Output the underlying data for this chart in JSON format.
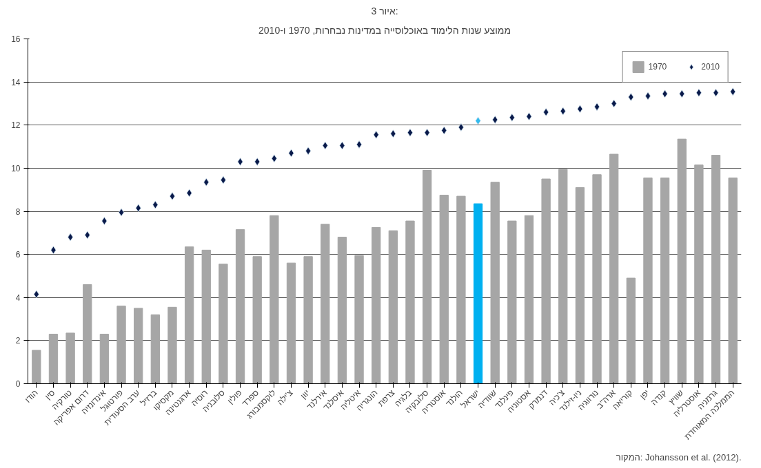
{
  "chart_data": {
    "type": "bar",
    "title": "איור 3:",
    "subtitle": "ממוצע שנות הלימוד באוכלוסייה במדינות נבחרות, 1970 ו-2010",
    "categories": [
      "הודו",
      "סין",
      "טורקיה",
      "דרום אפריקה",
      "אינדונזיה",
      "פורטוגל",
      "ערב הסעודית",
      "ברזיל",
      "מקסיקו",
      "ארגנטינה",
      "רוסיה",
      "סלובניה",
      "פולין",
      "ספרד",
      "לוקסמבורג",
      "צ'ילה",
      "יוון",
      "אירלנד",
      "איסלנד",
      "איטליה",
      "הונגריה",
      "צרפת",
      "בלגיה",
      "סלובקיה",
      "אוסטריה",
      "הולנד",
      "ישראל",
      "שוודיה",
      "פינלנד",
      "אסטוניה",
      "דנמרק",
      "צ'כיה",
      "ניו-זילנד",
      "נורווגיה",
      "ארה\"ב",
      "קוריאה",
      "יפן",
      "קנדה",
      "שוויץ",
      "אוסטרליה",
      "גרמניה",
      "הממלכה המאוחדת"
    ],
    "series": [
      {
        "name": "1970",
        "colors": [
          "#a6a6a6",
          "#a6a6a6",
          "#a6a6a6",
          "#a6a6a6",
          "#a6a6a6",
          "#a6a6a6",
          "#a6a6a6",
          "#a6a6a6",
          "#a6a6a6",
          "#a6a6a6",
          "#a6a6a6",
          "#a6a6a6",
          "#a6a6a6",
          "#a6a6a6",
          "#a6a6a6",
          "#a6a6a6",
          "#a6a6a6",
          "#a6a6a6",
          "#a6a6a6",
          "#a6a6a6",
          "#a6a6a6",
          "#a6a6a6",
          "#a6a6a6",
          "#a6a6a6",
          "#a6a6a6",
          "#a6a6a6",
          "#00b0f0",
          "#a6a6a6",
          "#a6a6a6",
          "#a6a6a6",
          "#a6a6a6",
          "#a6a6a6",
          "#a6a6a6",
          "#a6a6a6",
          "#a6a6a6",
          "#a6a6a6",
          "#a6a6a6",
          "#a6a6a6",
          "#a6a6a6",
          "#a6a6a6",
          "#a6a6a6",
          "#a6a6a6"
        ],
        "values": [
          1.55,
          2.3,
          2.35,
          4.6,
          2.3,
          3.6,
          3.5,
          3.2,
          3.55,
          6.35,
          6.2,
          5.55,
          7.15,
          5.9,
          7.8,
          5.6,
          5.9,
          7.4,
          6.8,
          5.95,
          7.25,
          7.1,
          7.55,
          9.9,
          8.75,
          8.7,
          8.35,
          9.35,
          7.55,
          7.8,
          9.5,
          9.95,
          9.1,
          9.7,
          10.65,
          4.9,
          9.55,
          9.55,
          11.35,
          10.15,
          10.6,
          9.55
        ]
      },
      {
        "name": "2010",
        "type": "scatter",
        "marker": "diamond",
        "colors": [
          "#0a1a4a",
          "#0a1a4a",
          "#0a1a4a",
          "#0a1a4a",
          "#0a1a4a",
          "#0a1a4a",
          "#0a1a4a",
          "#0a1a4a",
          "#0a1a4a",
          "#0a1a4a",
          "#0a1a4a",
          "#0a1a4a",
          "#0a1a4a",
          "#0a1a4a",
          "#0a1a4a",
          "#0a1a4a",
          "#0a1a4a",
          "#0a1a4a",
          "#0a1a4a",
          "#0a1a4a",
          "#0a1a4a",
          "#0a1a4a",
          "#0a1a4a",
          "#0a1a4a",
          "#0a1a4a",
          "#0a1a4a",
          "#33bbee",
          "#0a1a4a",
          "#0a1a4a",
          "#0a1a4a",
          "#0a1a4a",
          "#0a1a4a",
          "#0a1a4a",
          "#0a1a4a",
          "#0a1a4a",
          "#0a1a4a",
          "#0a1a4a",
          "#0a1a4a",
          "#0a1a4a",
          "#0a1a4a",
          "#0a1a4a",
          "#0a1a4a"
        ],
        "values": [
          4.15,
          6.2,
          6.8,
          6.9,
          7.55,
          7.95,
          8.15,
          8.3,
          8.7,
          8.85,
          9.35,
          9.45,
          10.3,
          10.3,
          10.45,
          10.7,
          10.8,
          11.05,
          11.05,
          11.1,
          11.55,
          11.6,
          11.65,
          11.65,
          11.75,
          11.9,
          12.2,
          12.25,
          12.35,
          12.4,
          12.6,
          12.65,
          12.75,
          12.85,
          13.0,
          13.3,
          13.35,
          13.45,
          13.45,
          13.5,
          13.5,
          13.55
        ]
      }
    ],
    "ylim": [
      0,
      16
    ],
    "yticks": [
      0,
      2,
      4,
      6,
      8,
      10,
      12,
      14,
      16
    ],
    "grid": "y",
    "legend": "top right",
    "annotations": [
      "המקור: Johansson et al. (2012)."
    ]
  }
}
